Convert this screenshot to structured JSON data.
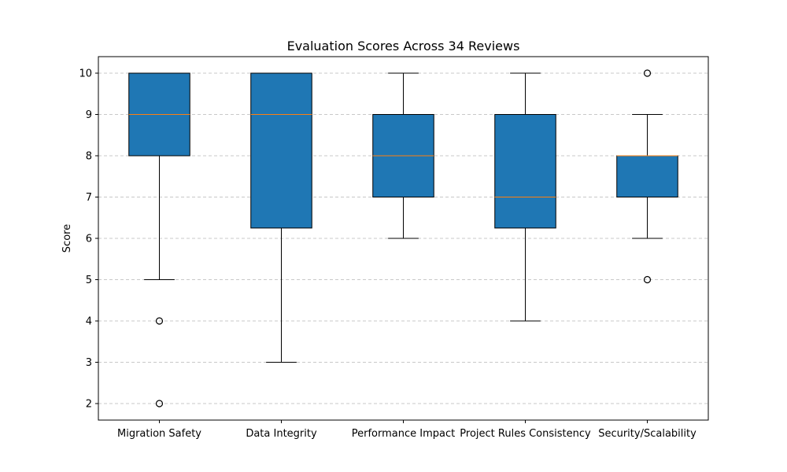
{
  "chart_data": {
    "type": "box",
    "title": "Evaluation Scores Across 34 Reviews",
    "xlabel": "",
    "ylabel": "Score",
    "ylim": [
      1.6,
      10.4
    ],
    "yticks": [
      2,
      3,
      4,
      5,
      6,
      7,
      8,
      9,
      10
    ],
    "grid": "horizontal-dashed",
    "colors": {
      "box_fill": "#1f77b4",
      "median": "#ff7f0e",
      "grid": "#c8c8c8"
    },
    "categories": [
      "Migration Safety",
      "Data Integrity",
      "Performance Impact",
      "Project Rules Consistency",
      "Security/Scalability"
    ],
    "boxes": [
      {
        "q1": 8,
        "median": 9,
        "q3": 10,
        "whisker_low": 5,
        "whisker_high": 10,
        "outliers": [
          4,
          2
        ]
      },
      {
        "q1": 6.25,
        "median": 9,
        "q3": 10,
        "whisker_low": 3,
        "whisker_high": 10,
        "outliers": []
      },
      {
        "q1": 7,
        "median": 8,
        "q3": 9,
        "whisker_low": 6,
        "whisker_high": 10,
        "outliers": []
      },
      {
        "q1": 6.25,
        "median": 7,
        "q3": 9,
        "whisker_low": 4,
        "whisker_high": 10,
        "outliers": []
      },
      {
        "q1": 7,
        "median": 8,
        "q3": 8,
        "whisker_low": 6,
        "whisker_high": 9,
        "outliers": [
          10,
          5
        ]
      }
    ]
  }
}
